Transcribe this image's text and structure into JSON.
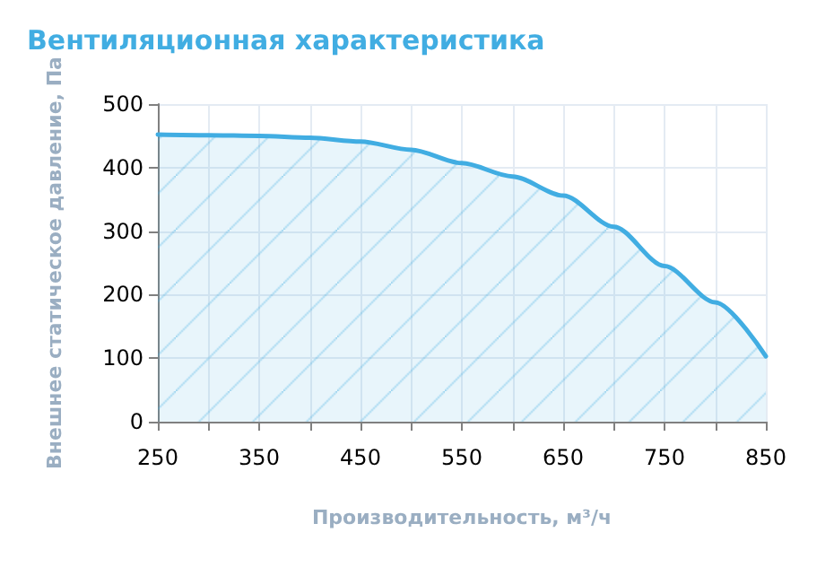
{
  "chart_data": {
    "type": "area",
    "title": "Вентиляционная характеристика",
    "xlabel": "Производительность, м³/ч",
    "ylabel": "Внешнее статическое давление, Па",
    "x": [
      250,
      300,
      350,
      400,
      450,
      500,
      550,
      600,
      650,
      700,
      750,
      800,
      850
    ],
    "series": [
      {
        "color": "#41ade2",
        "values": [
          452,
          451,
          450,
          447,
          441,
          428,
          407,
          386,
          356,
          307,
          245,
          188,
          103
        ]
      }
    ],
    "xlim": [
      250,
      850
    ],
    "xticks": [
      250,
      {
        "value": 300,
        "label": null
      },
      350,
      {
        "value": 400,
        "label": null
      },
      450,
      {
        "value": 500,
        "label": null
      },
      550,
      {
        "value": 600,
        "label": null
      },
      650,
      {
        "value": 700,
        "label": null
      },
      750,
      {
        "value": 800,
        "label": null
      },
      850
    ],
    "ylim": [
      0,
      500
    ],
    "yticks": [
      0,
      100,
      200,
      300,
      400,
      500
    ],
    "grid": true,
    "marker": "none",
    "line_style": "solid"
  }
}
